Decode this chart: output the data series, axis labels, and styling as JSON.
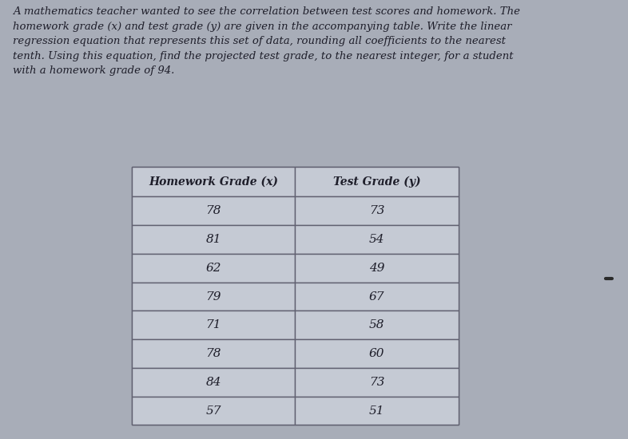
{
  "title_text": "A mathematics teacher wanted to see the correlation between test scores and homework. The\nhomework grade (x) and test grade (y) are given in the accompanying table. Write the linear\nregression equation that represents this set of data, rounding all coefficients to the nearest\ntenth. Using this equation, find the projected test grade, to the nearest integer, for a student\nwith a homework grade of 94.",
  "col_headers": [
    "Homework Grade (x)",
    "Test Grade (y)"
  ],
  "homework_grades": [
    78,
    81,
    62,
    79,
    71,
    78,
    84,
    57
  ],
  "test_grades": [
    73,
    54,
    49,
    67,
    58,
    60,
    73,
    51
  ],
  "bg_color": "#a8adb8",
  "table_bg": "#c5cad4",
  "border_color": "#606070",
  "text_color": "#1e1e2a",
  "title_fontsize": 9.5,
  "table_header_fontsize": 10,
  "table_data_fontsize": 11
}
